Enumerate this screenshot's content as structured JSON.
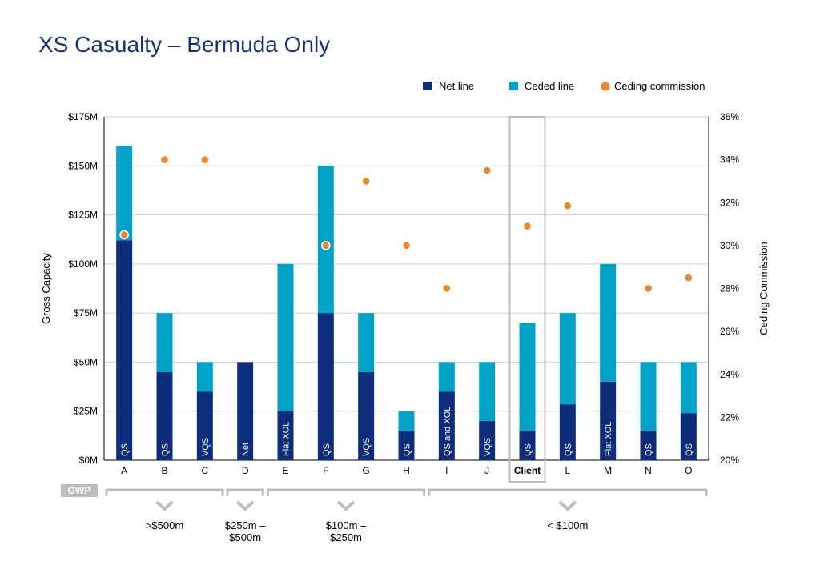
{
  "title": "XS Casualty – Bermuda Only",
  "colors": {
    "net": "#0b2d7c",
    "ceded": "#00a3c8",
    "commission": "#f08522",
    "grid": "#d0d0d0",
    "bracket": "#bdbdbd"
  },
  "gwp_label": "GWP",
  "chart_data": {
    "type": "bar",
    "stacked": true,
    "categories": [
      "A",
      "B",
      "C",
      "D",
      "E",
      "F",
      "G",
      "H",
      "I",
      "J",
      "Client",
      "L",
      "M",
      "N",
      "O"
    ],
    "highlight_category": "Client",
    "series": [
      {
        "name": "Net line",
        "type": "bar",
        "values": [
          112,
          45,
          35,
          50,
          25,
          75,
          45,
          15,
          35,
          20,
          15,
          28.5,
          40,
          15,
          24
        ]
      },
      {
        "name": "Ceded line",
        "type": "bar",
        "values": [
          48,
          30,
          15,
          0,
          75,
          75,
          30,
          10,
          15,
          30,
          55,
          46.5,
          60,
          35,
          26
        ]
      },
      {
        "name": "Ceding commission",
        "type": "scatter",
        "axis": "right",
        "values": [
          30.5,
          34,
          34,
          null,
          null,
          30,
          33,
          30,
          28,
          33.5,
          30.9,
          31.85,
          null,
          28,
          28.5
        ]
      }
    ],
    "bar_labels": [
      "QS",
      "QS",
      "VQS",
      "Net",
      "Flat XOL",
      "QS",
      "VQS",
      "QS",
      "QS and XOL",
      "VQS",
      "QS",
      "QS",
      "Flat XOL",
      "QS",
      "QS"
    ],
    "ylabel": "Gross Capacity",
    "y2label": "Ceding Commission",
    "ylim": [
      0,
      175
    ],
    "y2lim": [
      20,
      36
    ],
    "yticks": [
      "$0M",
      "$25M",
      "$50M",
      "$75M",
      "$100M",
      "$125M",
      "$150M",
      "$175M"
    ],
    "y2ticks": [
      "20%",
      "22%",
      "24%",
      "26%",
      "28%",
      "30%",
      "32%",
      "34%",
      "36%"
    ],
    "grid": true,
    "legend": "top-right",
    "groups": [
      {
        "label": ">$500m",
        "from": "A",
        "to": "C"
      },
      {
        "label": "$250m –\n$500m",
        "from": "D",
        "to": "D"
      },
      {
        "label": "$100m –\n$250m",
        "from": "E",
        "to": "H"
      },
      {
        "label": "< $100m",
        "from": "I",
        "to": "O"
      }
    ]
  }
}
